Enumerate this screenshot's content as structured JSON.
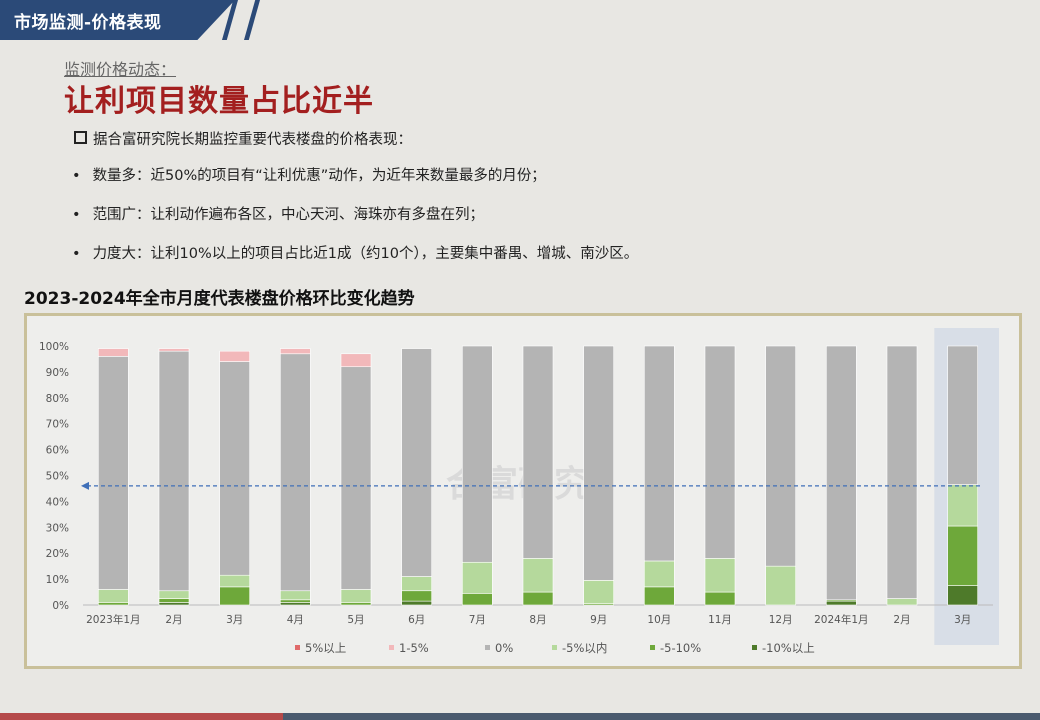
{
  "header": {
    "title": "市场监测-价格表现"
  },
  "subtitle": "监测价格动态：",
  "main_title": "让利项目数量占比近半",
  "intro": "据合富研究院长期监控重要代表楼盘的价格表现：",
  "bullets": [
    "数量多：近50%的项目有“让利优惠”动作，为近年来数量最多的月份；",
    "范围广：让利动作遍布各区，中心天河、海珠亦有多盘在列；",
    "力度大：让利10%以上的项目占比近1成（约10个），主要集中番禺、增城、南沙区。"
  ],
  "chart_title": "2023-2024年全市月度代表楼盘价格环比变化趋势",
  "watermark": "合富研究",
  "chart_data": {
    "type": "bar",
    "stacked": true,
    "categories": [
      "2023年1月",
      "2月",
      "3月",
      "4月",
      "5月",
      "6月",
      "7月",
      "8月",
      "9月",
      "10月",
      "11月",
      "12月",
      "2024年1月",
      "2月",
      "3月"
    ],
    "y_ticks": [
      "0%",
      "10%",
      "20%",
      "30%",
      "40%",
      "50%",
      "60%",
      "70%",
      "80%",
      "90%",
      "100%"
    ],
    "ylim": [
      0,
      100
    ],
    "highlight_category_index": 14,
    "reference_line": 46,
    "series": [
      {
        "name": "-10%以上",
        "color": "#4e7a2a",
        "values": [
          0,
          1,
          0,
          1,
          0,
          1.5,
          0,
          0,
          0,
          0,
          0,
          0,
          1.5,
          0,
          7.5
        ]
      },
      {
        "name": "-5-10%",
        "color": "#6ea83a",
        "values": [
          1,
          1.5,
          7,
          1,
          1,
          4,
          4.5,
          5,
          0.5,
          7,
          5,
          0,
          0.5,
          0,
          23
        ]
      },
      {
        "name": "-5%以内",
        "color": "#b5d99c",
        "values": [
          5,
          3,
          4.5,
          3.5,
          5,
          5.5,
          12,
          13,
          9,
          10,
          13,
          15,
          0,
          2.5,
          16
        ]
      },
      {
        "name": "0%",
        "color": "#b4b4b4",
        "values": [
          90,
          92.5,
          82.5,
          91.5,
          86,
          88,
          83.5,
          82,
          90.5,
          83,
          82,
          85,
          98,
          97.5,
          53.5
        ]
      },
      {
        "name": "1-5%",
        "color": "#f2b8ba",
        "values": [
          3,
          1,
          4,
          2,
          5,
          0,
          0,
          0,
          0,
          0,
          0,
          0,
          0,
          0,
          0
        ]
      },
      {
        "name": "5%以上",
        "color": "#e06a6a",
        "values": [
          0,
          0,
          0,
          0,
          0,
          0,
          0,
          0,
          0,
          0,
          0,
          0,
          0,
          0,
          0
        ]
      }
    ],
    "legend": {
      "position": "bottom",
      "order": [
        "5%以上",
        "1-5%",
        "0%",
        "-5%以内",
        "-5-10%",
        "-10%以上"
      ]
    },
    "highlight_fill": "#d2dae6",
    "reference_color": "#3f6fb8"
  }
}
